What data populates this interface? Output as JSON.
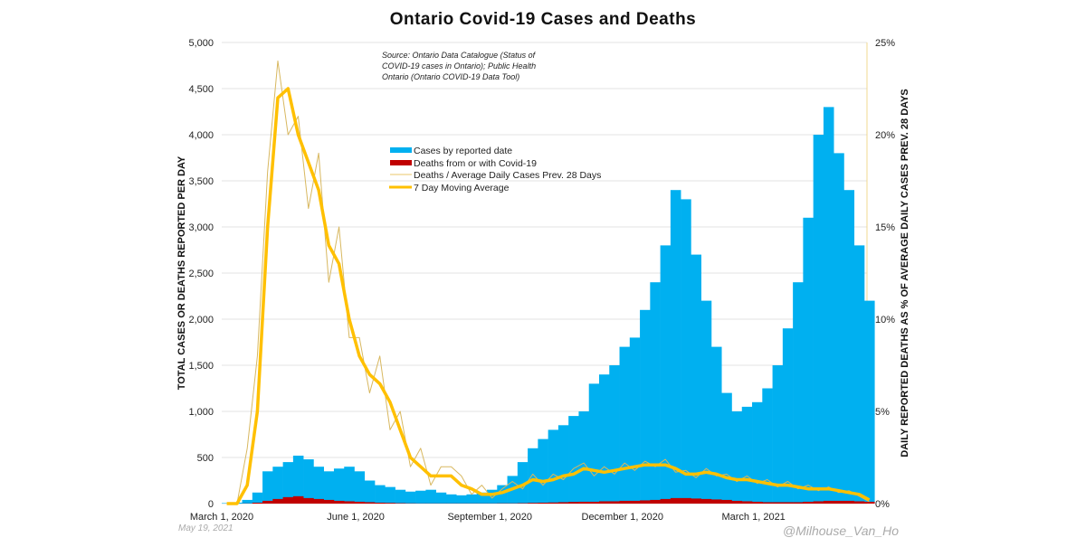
{
  "chart_data": {
    "type": "bar",
    "title": "Ontario Covid-19 Cases and Deaths",
    "source_note": [
      "Source: Ontario Data Catalogue (Status of",
      "COVID-19 cases in Ontario); Public Health",
      "Ontario (Ontario COVID-19 Data Tool)"
    ],
    "ylabel": "TOTAL CASES OR DEATHS REPORTED PER DAY",
    "y2label": "DAILY REPORTED DEATHS AS % OF AVERAGE DAILY CASES PREV. 28 DAYS",
    "ylim": [
      0,
      5000
    ],
    "y2lim": [
      0,
      25
    ],
    "yticks": [
      "0",
      "500",
      "1,000",
      "1,500",
      "2,000",
      "2,500",
      "3,000",
      "3,500",
      "4,000",
      "4,500",
      "5,000"
    ],
    "y2ticks": [
      "0%",
      "5%",
      "10%",
      "15%",
      "20%",
      "25%"
    ],
    "xticks": [
      {
        "label": "March 1, 2020",
        "day": 0
      },
      {
        "label": "June 1, 2020",
        "day": 92
      },
      {
        "label": "September 1, 2020",
        "day": 184
      },
      {
        "label": "December 1, 2020",
        "day": 275
      },
      {
        "label": "March 1, 2021",
        "day": 365
      }
    ],
    "x_start": "March 1, 2020",
    "x_step_days": 7,
    "grid": true,
    "legend_position": "center",
    "legend": [
      {
        "label": "Cases by reported date",
        "color": "#00b0f0",
        "kind": "bar"
      },
      {
        "label": "Deaths from or with Covid-19",
        "color": "#c00000",
        "kind": "bar"
      },
      {
        "label": "Deaths / Average Daily Cases Prev. 28 Days",
        "color": "#e8c76a",
        "kind": "thin-line"
      },
      {
        "label": "7 Day Moving Average",
        "color": "#ffc000",
        "kind": "thick-line"
      }
    ],
    "series": [
      {
        "name": "Cases by reported date",
        "axis": "left",
        "values": [
          5,
          10,
          40,
          120,
          350,
          400,
          450,
          520,
          480,
          400,
          350,
          380,
          400,
          350,
          250,
          200,
          180,
          150,
          130,
          140,
          150,
          120,
          100,
          90,
          100,
          120,
          150,
          200,
          300,
          450,
          600,
          700,
          800,
          850,
          950,
          1000,
          1300,
          1400,
          1500,
          1700,
          1800,
          2100,
          2400,
          2800,
          3400,
          3300,
          2700,
          2200,
          1700,
          1200,
          1000,
          1050,
          1100,
          1250,
          1500,
          1900,
          2400,
          3100,
          4000,
          4300,
          3800,
          3400,
          2800,
          2200
        ]
      },
      {
        "name": "Deaths from or with Covid-19",
        "axis": "left",
        "values": [
          0,
          0,
          2,
          10,
          30,
          50,
          70,
          80,
          60,
          50,
          40,
          30,
          25,
          20,
          15,
          10,
          8,
          5,
          3,
          2,
          2,
          2,
          2,
          2,
          2,
          2,
          2,
          3,
          3,
          5,
          8,
          10,
          12,
          15,
          18,
          20,
          20,
          25,
          25,
          30,
          30,
          35,
          40,
          50,
          60,
          60,
          55,
          50,
          45,
          40,
          30,
          25,
          20,
          15,
          15,
          15,
          15,
          20,
          25,
          30,
          30,
          30,
          25,
          20
        ]
      },
      {
        "name": "Deaths / Average Daily Cases Prev. 28 Days",
        "axis": "right",
        "values": [
          0,
          0,
          3,
          8,
          18,
          24,
          20,
          21,
          16,
          19,
          12,
          15,
          9,
          9,
          6,
          8,
          4,
          5,
          2,
          3,
          1,
          2,
          2,
          1.5,
          0.5,
          1,
          0.3,
          0.8,
          1.2,
          0.8,
          1.6,
          1.0,
          1.6,
          1.3,
          1.9,
          2.2,
          1.5,
          2.0,
          1.6,
          2.2,
          1.8,
          2.3,
          2.0,
          2.4,
          1.7,
          1.8,
          1.4,
          1.9,
          1.5,
          1.6,
          1.2,
          1.5,
          1.1,
          1.3,
          0.9,
          1.2,
          0.8,
          1.0,
          0.7,
          0.9,
          0.6,
          0.7,
          0.4,
          0.1
        ]
      },
      {
        "name": "7 Day Moving Average",
        "axis": "right",
        "values": [
          0,
          0,
          1,
          5,
          15,
          22,
          22.5,
          20,
          18.5,
          17,
          14,
          13,
          10,
          8,
          7,
          6.5,
          5.5,
          4,
          2.5,
          2,
          1.5,
          1.5,
          1.5,
          1,
          0.8,
          0.5,
          0.5,
          0.6,
          0.8,
          1.0,
          1.3,
          1.2,
          1.3,
          1.5,
          1.6,
          1.9,
          1.8,
          1.7,
          1.8,
          1.9,
          2.0,
          2.1,
          2.1,
          2.1,
          1.9,
          1.6,
          1.6,
          1.7,
          1.6,
          1.4,
          1.3,
          1.3,
          1.2,
          1.1,
          1.0,
          1.0,
          0.9,
          0.8,
          0.8,
          0.8,
          0.7,
          0.6,
          0.5,
          0.2
        ]
      }
    ]
  },
  "footer": {
    "date": "May 19, 2021",
    "watermark": "@Milhouse_Van_Ho"
  }
}
